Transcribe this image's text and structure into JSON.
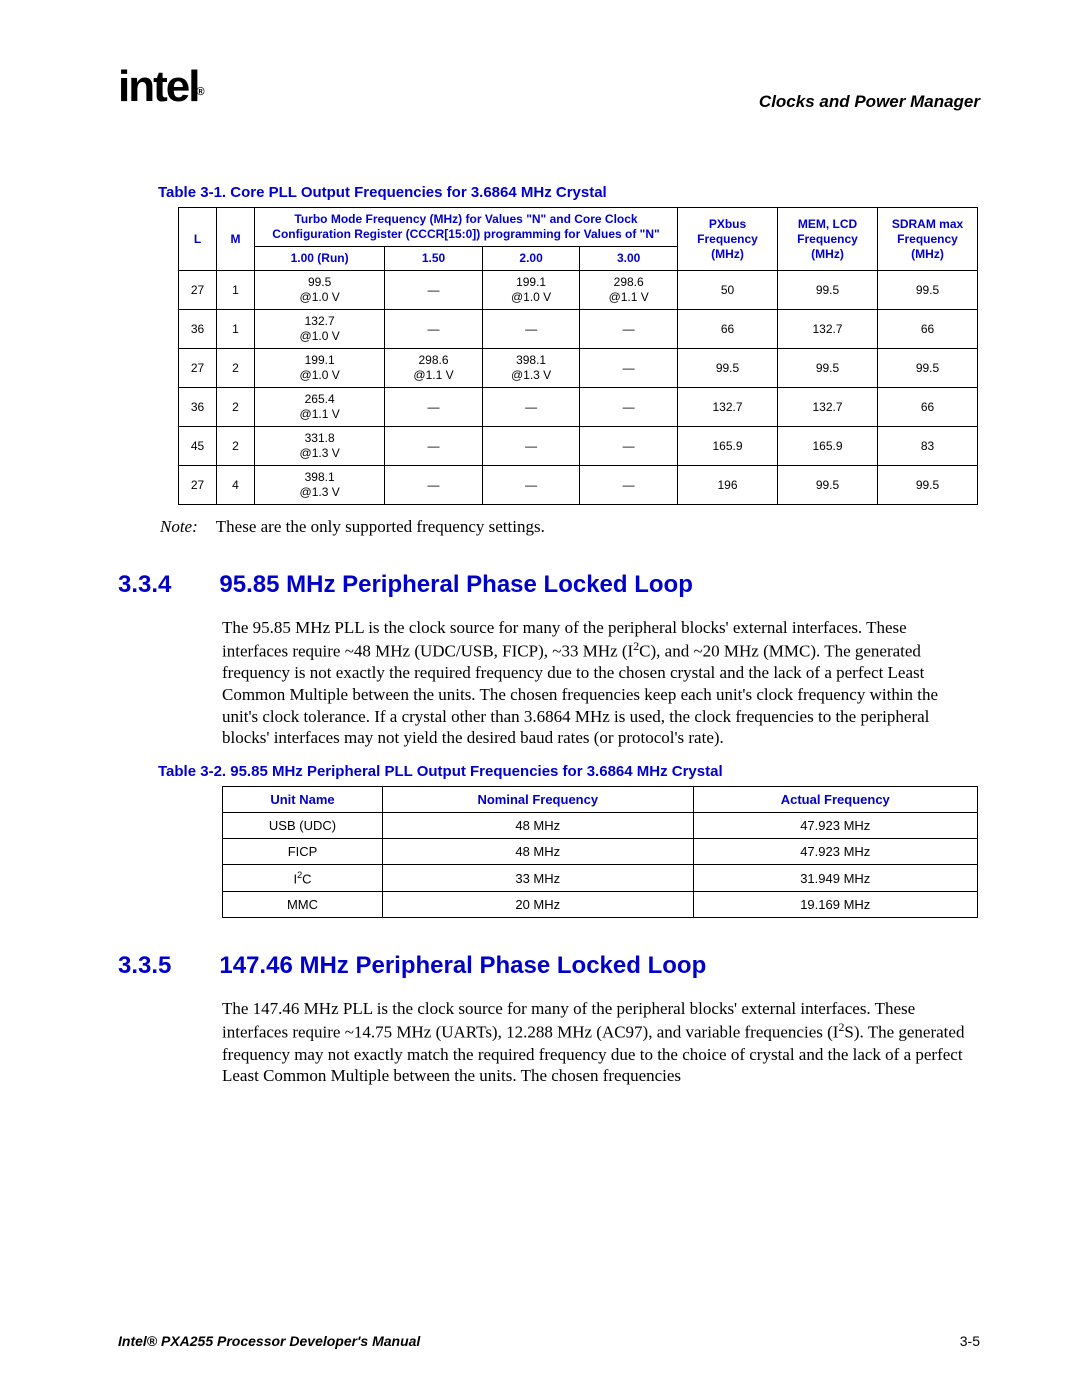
{
  "header": {
    "logo_text": "intel",
    "logo_sub": "®",
    "chapter": "Clocks and Power Manager"
  },
  "table1": {
    "caption": "Table 3-1. Core PLL Output Frequencies for 3.6864 MHz Crystal",
    "hdr_L": "L",
    "hdr_M": "M",
    "hdr_turbo": "Turbo Mode Frequency (MHz) for Values \"N\" and Core Clock Configuration Register (CCCR[15:0]) programming for Values of \"N\"",
    "hdr_pxbus": "PXbus Frequency (MHz)",
    "hdr_memlcd": "MEM, LCD Frequency (MHz)",
    "hdr_sdram": "SDRAM max Frequency (MHz)",
    "sub_n1": "1.00 (Run)",
    "sub_n15": "1.50",
    "sub_n2": "2.00",
    "sub_n3": "3.00",
    "rows": [
      {
        "L": "27",
        "M": "1",
        "n1": "99.5\n@1.0 V",
        "n15": "—",
        "n2": "199.1\n@1.0 V",
        "n3": "298.6\n@1.1 V",
        "px": "50",
        "mem": "99.5",
        "sd": "99.5"
      },
      {
        "L": "36",
        "M": "1",
        "n1": "132.7\n@1.0 V",
        "n15": "—",
        "n2": "—",
        "n3": "—",
        "px": "66",
        "mem": "132.7",
        "sd": "66"
      },
      {
        "L": "27",
        "M": "2",
        "n1": "199.1\n@1.0 V",
        "n15": "298.6\n@1.1 V",
        "n2": "398.1\n@1.3 V",
        "n3": "—",
        "px": "99.5",
        "mem": "99.5",
        "sd": "99.5"
      },
      {
        "L": "36",
        "M": "2",
        "n1": "265.4\n@1.1 V",
        "n15": "—",
        "n2": "—",
        "n3": "—",
        "px": "132.7",
        "mem": "132.7",
        "sd": "66"
      },
      {
        "L": "45",
        "M": "2",
        "n1": "331.8\n@1.3 V",
        "n15": "—",
        "n2": "—",
        "n3": "—",
        "px": "165.9",
        "mem": "165.9",
        "sd": "83"
      },
      {
        "L": "27",
        "M": "4",
        "n1": "398.1\n@1.3 V",
        "n15": "—",
        "n2": "—",
        "n3": "—",
        "px": "196",
        "mem": "99.5",
        "sd": "99.5"
      }
    ]
  },
  "note": {
    "label": "Note:",
    "text": "These are the only supported frequency settings."
  },
  "section334": {
    "num": "3.3.4",
    "title": "95.85 MHz Peripheral Phase Locked Loop",
    "para": "The 95.85 MHz PLL is the clock source for many of the peripheral blocks' external interfaces. These interfaces require ~48 MHz (UDC/USB, FICP), ~33 MHz (I2C), and ~20 MHz (MMC). The generated frequency is not exactly the required frequency due to the chosen crystal and the lack of a perfect Least Common Multiple between the units. The chosen frequencies keep each unit's clock frequency within the unit's clock tolerance. If a crystal other than 3.6864 MHz is used, the clock frequencies to the peripheral blocks' interfaces may not yield the desired baud rates (or protocol's rate)."
  },
  "table2": {
    "caption": "Table 3-2. 95.85 MHz Peripheral PLL Output Frequencies for 3.6864 MHz Crystal",
    "hdr_unit": "Unit Name",
    "hdr_nom": "Nominal Frequency",
    "hdr_act": "Actual Frequency",
    "rows": [
      {
        "u": "USB (UDC)",
        "n": "48 MHz",
        "a": "47.923 MHz"
      },
      {
        "u": "FICP",
        "n": "48 MHz",
        "a": "47.923 MHz"
      },
      {
        "u": "I2C",
        "n": "33 MHz",
        "a": "31.949 MHz"
      },
      {
        "u": "MMC",
        "n": "20 MHz",
        "a": "19.169 MHz"
      }
    ]
  },
  "section335": {
    "num": "3.3.5",
    "title": "147.46 MHz Peripheral Phase Locked Loop",
    "para": "The 147.46 MHz PLL is the clock source for many of the peripheral blocks' external interfaces. These interfaces require ~14.75 MHz (UARTs), 12.288 MHz (AC97), and variable frequencies (I2S). The generated frequency may not exactly match the required frequency due to the choice of crystal and the lack of a perfect Least Common Multiple between the units. The chosen frequencies"
  },
  "footer": {
    "title": "Intel® PXA255 Processor Developer's Manual",
    "pagenum": "3-5"
  }
}
